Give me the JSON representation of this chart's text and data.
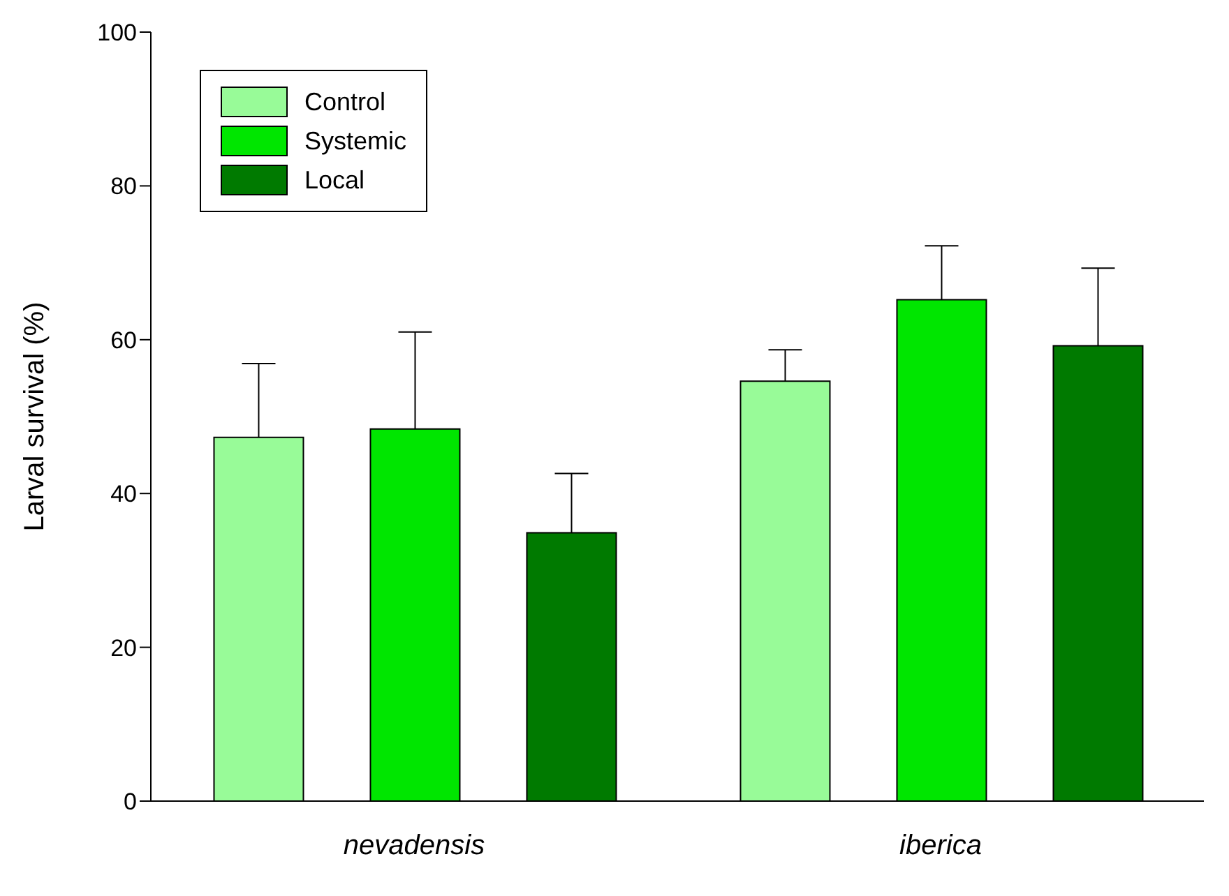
{
  "chart_data": {
    "type": "bar",
    "ylabel": "Larval survival (%)",
    "categories": [
      "nevadensis",
      "iberica"
    ],
    "series": [
      {
        "name": "Control",
        "color": "#98fb98",
        "values": [
          47.3,
          54.6
        ],
        "errors": [
          [
            47.3,
            56.9
          ],
          [
            54.6,
            58.7
          ]
        ]
      },
      {
        "name": "Systemic",
        "color": "#00e600",
        "values": [
          48.4,
          65.2
        ],
        "errors": [
          [
            48.4,
            61.0
          ],
          [
            65.2,
            72.2
          ]
        ]
      },
      {
        "name": "Local",
        "color": "#007a00",
        "values": [
          34.9,
          59.2
        ],
        "errors": [
          [
            34.9,
            42.6
          ],
          [
            59.2,
            69.3
          ]
        ]
      }
    ],
    "ylim": [
      0,
      100
    ],
    "yticks": [
      0,
      20,
      40,
      60,
      80,
      100
    ],
    "grid": false,
    "legend": "top left"
  }
}
